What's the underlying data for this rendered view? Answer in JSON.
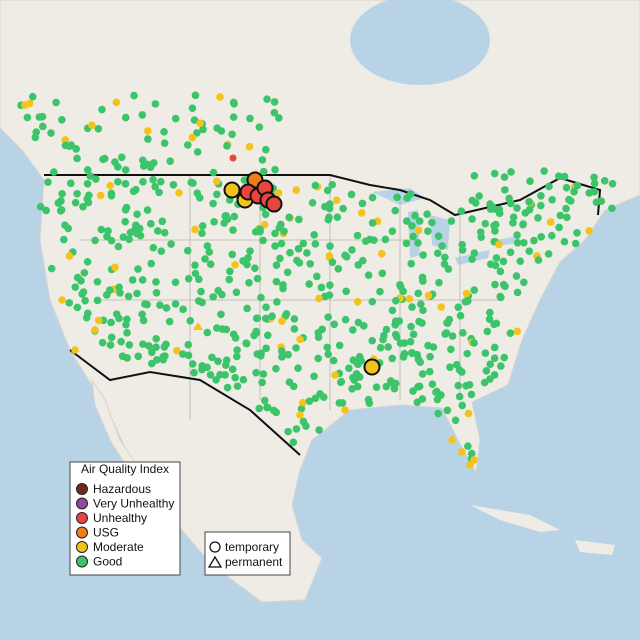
{
  "legend": {
    "title": "Air Quality Index",
    "items": [
      {
        "label": "Hazardous",
        "color": "#6e2a22"
      },
      {
        "label": "Very Unhealthy",
        "color": "#8e4a9e"
      },
      {
        "label": "Unhealthy",
        "color": "#e8453c"
      },
      {
        "label": "USG",
        "color": "#ee7d1a"
      },
      {
        "label": "Moderate",
        "color": "#f3c31b"
      },
      {
        "label": "Good",
        "color": "#3cc46a"
      }
    ]
  },
  "shape_legend": {
    "items": [
      "temporary",
      "permanent"
    ]
  }
}
